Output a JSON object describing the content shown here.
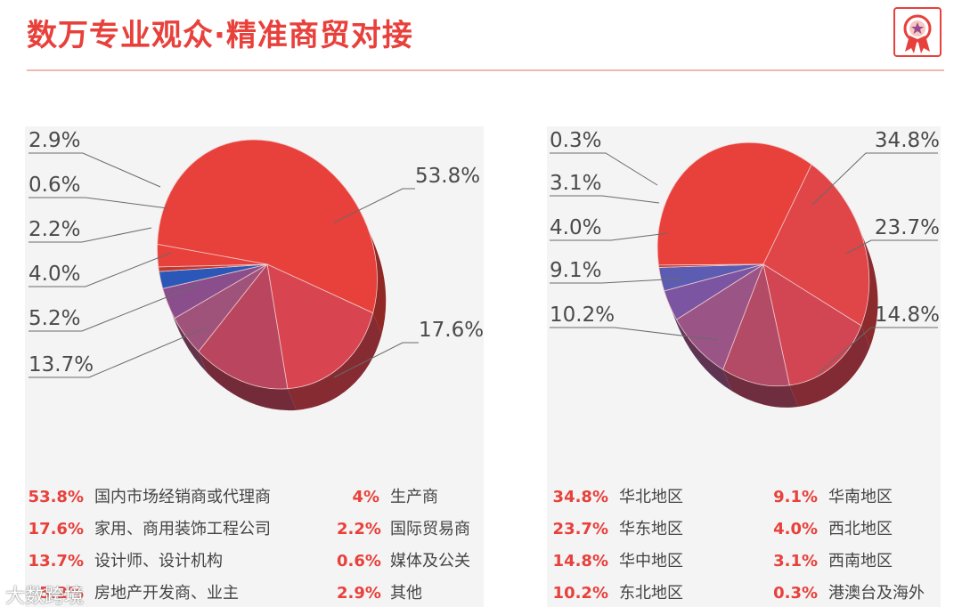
{
  "header": {
    "title": "数万专业观众·精准商贸对接"
  },
  "colors": {
    "accent": "#e8403b",
    "slices_left": [
      "#e8403b",
      "#d84550",
      "#b9465e",
      "#a0537a",
      "#8a4e8c",
      "#2b58b8",
      "#c03930"
    ],
    "slices_right": [
      "#e8403b",
      "#e04548",
      "#d24654",
      "#b34a66",
      "#9a5486",
      "#7b54a2",
      "#5c5cb2",
      "#c03930"
    ]
  },
  "chart_data": [
    {
      "type": "pie",
      "title": "",
      "labels": [
        "53.8%",
        "17.6%",
        "13.7%",
        "5.2%",
        "4.0%",
        "2.2%",
        "0.6%",
        "2.9%"
      ],
      "legend": [
        {
          "value": "53.8%",
          "label": "国内市场经销商或代理商"
        },
        {
          "value": "4%",
          "label": "生产商"
        },
        {
          "value": "17.6%",
          "label": "家用、商用装饰工程公司"
        },
        {
          "value": "2.2%",
          "label": "国际贸易商"
        },
        {
          "value": "13.7%",
          "label": "设计师、设计机构"
        },
        {
          "value": "0.6%",
          "label": "媒体及公关"
        },
        {
          "value": "5.2%",
          "label": "房地产开发商、业主"
        },
        {
          "value": "2.9%",
          "label": "其他"
        }
      ],
      "series": [
        {
          "category": "国内市场经销商或代理商",
          "value": 53.8
        },
        {
          "category": "家用、商用装饰工程公司",
          "value": 17.6
        },
        {
          "category": "设计师、设计机构",
          "value": 13.7
        },
        {
          "category": "房地产开发商、业主",
          "value": 5.2
        },
        {
          "category": "生产商",
          "value": 4.0
        },
        {
          "category": "国际贸易商",
          "value": 2.2
        },
        {
          "category": "媒体及公关",
          "value": 0.6
        },
        {
          "category": "其他",
          "value": 2.9
        }
      ]
    },
    {
      "type": "pie",
      "title": "",
      "labels": [
        "34.8%",
        "23.7%",
        "14.8%",
        "10.2%",
        "9.1%",
        "4.0%",
        "3.1%",
        "0.3%"
      ],
      "legend": [
        {
          "value": "34.8%",
          "label": "华北地区"
        },
        {
          "value": "9.1%",
          "label": "华南地区"
        },
        {
          "value": "23.7%",
          "label": "华东地区"
        },
        {
          "value": "4.0%",
          "label": "西北地区"
        },
        {
          "value": "14.8%",
          "label": "华中地区"
        },
        {
          "value": "3.1%",
          "label": "西南地区"
        },
        {
          "value": "10.2%",
          "label": "东北地区"
        },
        {
          "value": "0.3%",
          "label": "港澳台及海外"
        }
      ],
      "series": [
        {
          "category": "华北地区",
          "value": 34.8
        },
        {
          "category": "华东地区",
          "value": 23.7
        },
        {
          "category": "华中地区",
          "value": 14.8
        },
        {
          "category": "东北地区",
          "value": 10.2
        },
        {
          "category": "华南地区",
          "value": 9.1
        },
        {
          "category": "西北地区",
          "value": 4.0
        },
        {
          "category": "西南地区",
          "value": 3.1
        },
        {
          "category": "港澳台及海外",
          "value": 0.3
        }
      ]
    }
  ],
  "watermark": {
    "text": "大数跨境"
  }
}
